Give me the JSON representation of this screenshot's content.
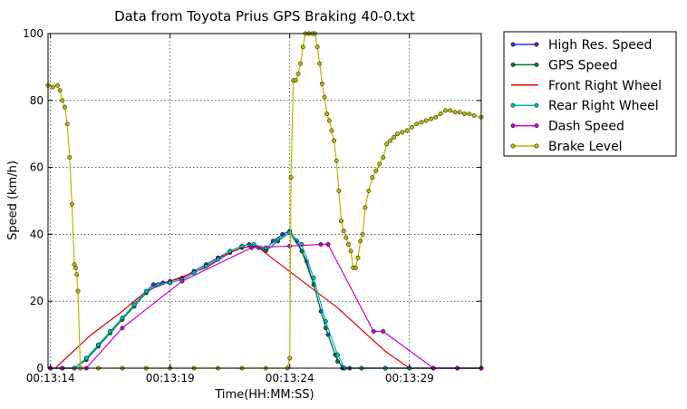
{
  "chart_data": {
    "type": "line",
    "title": "Data from Toyota Prius GPS Braking 40-0.txt",
    "xlabel": "Time(HH:MM:SS)",
    "ylabel": "Speed (km/h)",
    "xlim": [
      "00:13:13.9",
      "00:13:32"
    ],
    "ylim": [
      0,
      100
    ],
    "xticks": [
      "00:13:14",
      "00:13:19",
      "00:13:24",
      "00:13:29"
    ],
    "yticks": [
      0,
      20,
      40,
      60,
      80,
      100
    ],
    "grid": true,
    "legend_position": "outside-right",
    "series": [
      {
        "name": "High Res. Speed",
        "color": "#3030c8",
        "marker": true,
        "points": [
          [
            "00:13:14.0",
            0
          ],
          [
            "00:13:14.5",
            0
          ],
          [
            "00:13:15.0",
            0
          ],
          [
            "00:13:15.5",
            3
          ],
          [
            "00:13:16.0",
            7
          ],
          [
            "00:13:16.5",
            11
          ],
          [
            "00:13:17.0",
            15
          ],
          [
            "00:13:17.5",
            19
          ],
          [
            "00:13:18.0",
            23
          ],
          [
            "00:13:18.3",
            25
          ],
          [
            "00:13:18.7",
            25.5
          ],
          [
            "00:13:19.0",
            26
          ],
          [
            "00:13:19.5",
            27
          ],
          [
            "00:13:20.0",
            29
          ],
          [
            "00:13:20.5",
            31
          ],
          [
            "00:13:21.0",
            33
          ],
          [
            "00:13:21.5",
            35
          ],
          [
            "00:13:22.0",
            36.5
          ],
          [
            "00:13:22.3",
            37
          ],
          [
            "00:13:22.7",
            36
          ],
          [
            "00:13:23.0",
            35.5
          ],
          [
            "00:13:23.3",
            38
          ],
          [
            "00:13:23.7",
            40
          ],
          [
            "00:13:24.0",
            41
          ],
          [
            "00:13:24.3",
            38
          ],
          [
            "00:13:24.7",
            32
          ],
          [
            "00:13:25.0",
            25
          ],
          [
            "00:13:25.3",
            17
          ],
          [
            "00:13:25.6",
            10
          ],
          [
            "00:13:25.9",
            4
          ],
          [
            "00:13:26.2",
            0
          ],
          [
            "00:13:26.5",
            0
          ],
          [
            "00:13:27.0",
            0
          ],
          [
            "00:13:28.0",
            0
          ],
          [
            "00:13:29.0",
            0
          ],
          [
            "00:13:30.0",
            0
          ],
          [
            "00:13:31.0",
            0
          ],
          [
            "00:13:32.0",
            0
          ]
        ]
      },
      {
        "name": "GPS Speed",
        "color": "#007a30",
        "marker": true,
        "points": [
          [
            "00:13:14.0",
            0
          ],
          [
            "00:13:15.0",
            0
          ],
          [
            "00:13:15.5",
            2.5
          ],
          [
            "00:13:16.0",
            6.5
          ],
          [
            "00:13:16.5",
            10.5
          ],
          [
            "00:13:17.0",
            14.5
          ],
          [
            "00:13:17.5",
            18.5
          ],
          [
            "00:13:18.0",
            22.5
          ],
          [
            "00:13:18.5",
            25
          ],
          [
            "00:13:19.0",
            25.5
          ],
          [
            "00:13:19.5",
            26.5
          ],
          [
            "00:13:20.0",
            28.5
          ],
          [
            "00:13:20.5",
            30.5
          ],
          [
            "00:13:21.0",
            32.5
          ],
          [
            "00:13:21.5",
            34.5
          ],
          [
            "00:13:22.0",
            36
          ],
          [
            "00:13:22.5",
            36.5
          ],
          [
            "00:13:23.0",
            35
          ],
          [
            "00:13:23.5",
            38
          ],
          [
            "00:13:24.0",
            40.5
          ],
          [
            "00:13:24.5",
            35
          ],
          [
            "00:13:25.0",
            25
          ],
          [
            "00:13:25.5",
            12
          ],
          [
            "00:13:26.0",
            2
          ],
          [
            "00:13:26.3",
            0
          ],
          [
            "00:13:27.0",
            0
          ],
          [
            "00:13:28.0",
            0
          ],
          [
            "00:13:29.0",
            0
          ],
          [
            "00:13:30.0",
            0
          ],
          [
            "00:13:31.0",
            0
          ],
          [
            "00:13:32.0",
            0
          ]
        ]
      },
      {
        "name": "Front Right Wheel",
        "color": "#e00000",
        "marker": false,
        "points": [
          [
            "00:13:14.0",
            0
          ],
          [
            "00:13:14.2",
            0
          ],
          [
            "00:13:15.7",
            10
          ],
          [
            "00:13:17.0",
            17
          ],
          [
            "00:13:18.0",
            23
          ],
          [
            "00:13:19.0",
            26
          ],
          [
            "00:13:20.5",
            30
          ],
          [
            "00:13:21.5",
            34.5
          ],
          [
            "00:13:22.0",
            36
          ],
          [
            "00:13:22.6",
            36.5
          ],
          [
            "00:13:26.0",
            18
          ],
          [
            "00:13:28.0",
            5
          ],
          [
            "00:13:29.0",
            0
          ],
          [
            "00:13:32.0",
            0
          ]
        ]
      },
      {
        "name": "Rear Right Wheel",
        "color": "#00b8b8",
        "marker": true,
        "points": [
          [
            "00:13:14.0",
            0
          ],
          [
            "00:13:15.0",
            0
          ],
          [
            "00:13:15.5",
            3
          ],
          [
            "00:13:16.0",
            7
          ],
          [
            "00:13:16.5",
            11
          ],
          [
            "00:13:17.0",
            15
          ],
          [
            "00:13:17.5",
            19
          ],
          [
            "00:13:18.0",
            23
          ],
          [
            "00:13:18.5",
            25
          ],
          [
            "00:13:19.0",
            25.5
          ],
          [
            "00:13:19.5",
            26.5
          ],
          [
            "00:13:20.0",
            28.5
          ],
          [
            "00:13:20.5",
            30.5
          ],
          [
            "00:13:21.0",
            32.5
          ],
          [
            "00:13:21.5",
            35
          ],
          [
            "00:13:22.0",
            36.5
          ],
          [
            "00:13:22.5",
            37
          ],
          [
            "00:13:23.0",
            36
          ],
          [
            "00:13:23.5",
            38.5
          ],
          [
            "00:13:24.0",
            40.5
          ],
          [
            "00:13:24.5",
            37
          ],
          [
            "00:13:25.0",
            27
          ],
          [
            "00:13:25.5",
            14
          ],
          [
            "00:13:26.0",
            4
          ],
          [
            "00:13:26.3",
            0
          ],
          [
            "00:13:27.0",
            0
          ],
          [
            "00:13:28.0",
            0
          ],
          [
            "00:13:29.0",
            0
          ],
          [
            "00:13:30.0",
            0
          ],
          [
            "00:13:31.0",
            0
          ],
          [
            "00:13:32.0",
            0
          ]
        ]
      },
      {
        "name": "Dash Speed",
        "color": "#cc00cc",
        "marker": true,
        "points": [
          [
            "00:13:14.0",
            0
          ],
          [
            "00:13:14.5",
            0
          ],
          [
            "00:13:15.5",
            0
          ],
          [
            "00:13:17.0",
            12
          ],
          [
            "00:13:19.5",
            26
          ],
          [
            "00:13:22.4",
            36
          ],
          [
            "00:13:24.0",
            36.5
          ],
          [
            "00:13:25.3",
            37
          ],
          [
            "00:13:25.6",
            37
          ],
          [
            "00:13:27.5",
            11
          ],
          [
            "00:13:27.9",
            11
          ],
          [
            "00:13:30.0",
            0
          ],
          [
            "00:13:31.0",
            0
          ],
          [
            "00:13:32.0",
            0
          ]
        ]
      },
      {
        "name": "Brake Level",
        "color": "#b8b800",
        "marker": true,
        "points": [
          [
            "00:13:13.9",
            84.5
          ],
          [
            "00:13:14.1",
            84
          ],
          [
            "00:13:14.3",
            84.5
          ],
          [
            "00:13:14.4",
            83
          ],
          [
            "00:13:14.5",
            80
          ],
          [
            "00:13:14.6",
            78
          ],
          [
            "00:13:14.7",
            73
          ],
          [
            "00:13:14.8",
            63
          ],
          [
            "00:13:14.9",
            49
          ],
          [
            "00:13:15.0",
            31
          ],
          [
            "00:13:15.05",
            30
          ],
          [
            "00:13:15.1",
            28
          ],
          [
            "00:13:15.15",
            23
          ],
          [
            "00:13:15.25",
            0
          ],
          [
            "00:13:16.0",
            0
          ],
          [
            "00:13:17.0",
            0
          ],
          [
            "00:13:18.0",
            0
          ],
          [
            "00:13:19.0",
            0
          ],
          [
            "00:13:20.0",
            0
          ],
          [
            "00:13:21.0",
            0
          ],
          [
            "00:13:22.0",
            0
          ],
          [
            "00:13:23.0",
            0
          ],
          [
            "00:13:23.9",
            0
          ],
          [
            "00:13:24.0",
            3
          ],
          [
            "00:13:24.05",
            57
          ],
          [
            "00:13:24.15",
            86
          ],
          [
            "00:13:24.25",
            86
          ],
          [
            "00:13:24.35",
            88
          ],
          [
            "00:13:24.45",
            91
          ],
          [
            "00:13:24.55",
            96
          ],
          [
            "00:13:24.65",
            100
          ],
          [
            "00:13:24.8",
            100
          ],
          [
            "00:13:24.95",
            100
          ],
          [
            "00:13:25.05",
            100
          ],
          [
            "00:13:25.15",
            96
          ],
          [
            "00:13:25.25",
            91
          ],
          [
            "00:13:25.35",
            85
          ],
          [
            "00:13:25.45",
            81
          ],
          [
            "00:13:25.55",
            76
          ],
          [
            "00:13:25.65",
            74
          ],
          [
            "00:13:25.75",
            71
          ],
          [
            "00:13:25.85",
            68
          ],
          [
            "00:13:25.95",
            62
          ],
          [
            "00:13:26.05",
            53
          ],
          [
            "00:13:26.15",
            44
          ],
          [
            "00:13:26.25",
            41
          ],
          [
            "00:13:26.35",
            39
          ],
          [
            "00:13:26.45",
            37
          ],
          [
            "00:13:26.55",
            35
          ],
          [
            "00:13:26.65",
            30
          ],
          [
            "00:13:26.75",
            30
          ],
          [
            "00:13:26.85",
            33
          ],
          [
            "00:13:26.95",
            38
          ],
          [
            "00:13:27.05",
            40
          ],
          [
            "00:13:27.15",
            48
          ],
          [
            "00:13:27.3",
            53
          ],
          [
            "00:13:27.45",
            57
          ],
          [
            "00:13:27.6",
            59
          ],
          [
            "00:13:27.75",
            61
          ],
          [
            "00:13:27.9",
            63
          ],
          [
            "00:13:28.05",
            67
          ],
          [
            "00:13:28.2",
            68
          ],
          [
            "00:13:28.35",
            69
          ],
          [
            "00:13:28.5",
            70
          ],
          [
            "00:13:28.7",
            70.5
          ],
          [
            "00:13:28.9",
            71
          ],
          [
            "00:13:29.1",
            72
          ],
          [
            "00:13:29.3",
            73
          ],
          [
            "00:13:29.5",
            73.5
          ],
          [
            "00:13:29.7",
            74
          ],
          [
            "00:13:29.9",
            74.5
          ],
          [
            "00:13:30.1",
            75
          ],
          [
            "00:13:30.3",
            76
          ],
          [
            "00:13:30.5",
            77
          ],
          [
            "00:13:30.7",
            77
          ],
          [
            "00:13:30.9",
            76.5
          ],
          [
            "00:13:31.1",
            76.5
          ],
          [
            "00:13:31.3",
            76
          ],
          [
            "00:13:31.5",
            76
          ],
          [
            "00:13:31.7",
            75.5
          ],
          [
            "00:13:32.0",
            75
          ]
        ]
      }
    ]
  }
}
